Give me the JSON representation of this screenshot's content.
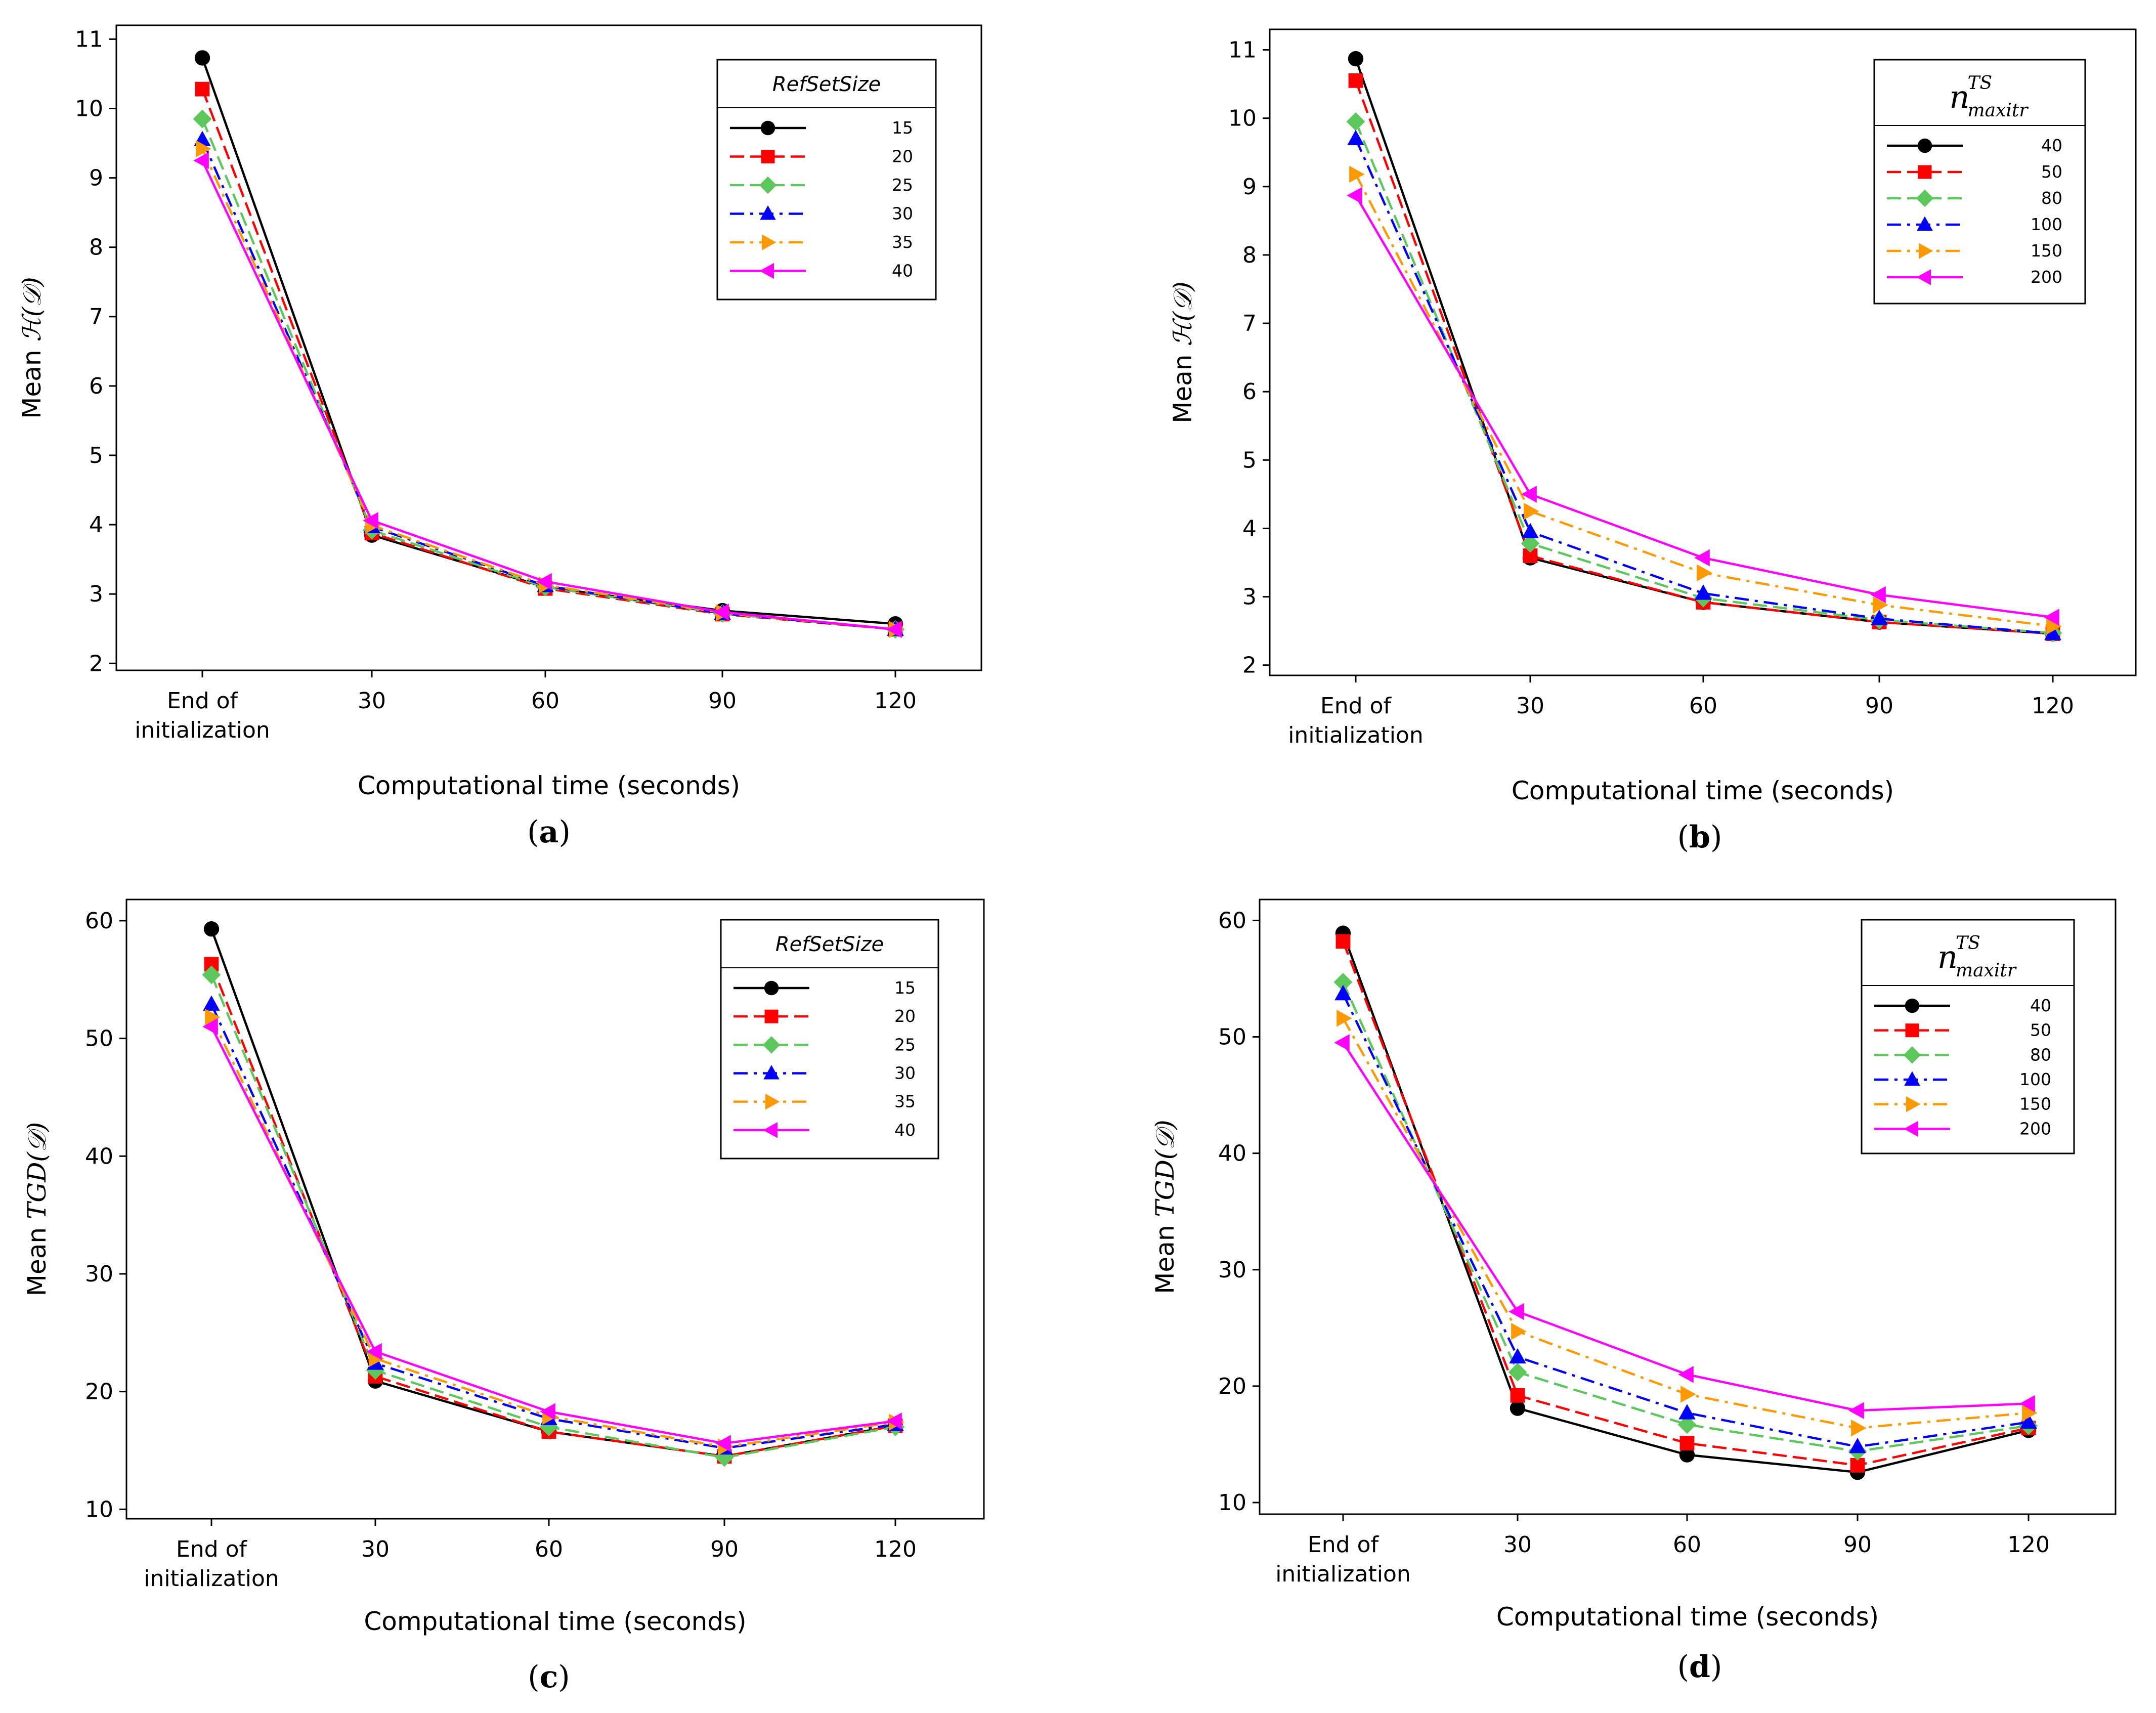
{
  "chart_data": [
    {
      "panel": "a",
      "type": "line",
      "caption": {
        "open": "(",
        "letter": "a",
        "close": ")"
      },
      "categories": [
        "End of\ninitialization",
        "30",
        "60",
        "90",
        "120"
      ],
      "xlabel": "Computational time (seconds)",
      "ylabel": {
        "prefix": "Mean ",
        "math": "ℋ(𝒟)"
      },
      "yticks": [
        "2",
        "3",
        "4",
        "5",
        "6",
        "7",
        "8",
        "9",
        "10",
        "11"
      ],
      "ylim": [
        1.9,
        11.2
      ],
      "legend": {
        "title": "RefSetSize",
        "title_kind": "text",
        "position": "top-right"
      },
      "series": [
        {
          "name": "15",
          "color": "#000000",
          "marker": "circle",
          "dash": "solid",
          "values": [
            10.73,
            3.85,
            3.1,
            2.76,
            2.57
          ]
        },
        {
          "name": "20",
          "color": "#ff0000",
          "marker": "square",
          "dash": "dash",
          "values": [
            10.28,
            3.88,
            3.08,
            2.71,
            2.49
          ]
        },
        {
          "name": "25",
          "color": "#5cc85c",
          "marker": "diamond",
          "dash": "dash",
          "values": [
            9.85,
            3.92,
            3.1,
            2.72,
            2.49
          ]
        },
        {
          "name": "30",
          "color": "#0000ff",
          "marker": "triangle-up",
          "dash": "dashdot",
          "values": [
            9.55,
            3.97,
            3.12,
            2.72,
            2.49
          ]
        },
        {
          "name": "35",
          "color": "#ff9900",
          "marker": "triangle-right",
          "dash": "dashdot",
          "values": [
            9.42,
            3.99,
            3.13,
            2.73,
            2.49
          ]
        },
        {
          "name": "40",
          "color": "#ff00ff",
          "marker": "triangle-left",
          "dash": "solid",
          "values": [
            9.25,
            4.06,
            3.18,
            2.74,
            2.49
          ]
        }
      ]
    },
    {
      "panel": "b",
      "type": "line",
      "caption": {
        "open": "(",
        "letter": "b",
        "close": ")"
      },
      "categories": [
        "End of\ninitialization",
        "30",
        "60",
        "90",
        "120"
      ],
      "xlabel": "Computational time (seconds)",
      "ylabel": {
        "prefix": "Mean ",
        "math": "ℋ(𝒟)"
      },
      "yticks": [
        "2",
        "3",
        "4",
        "5",
        "6",
        "7",
        "8",
        "9",
        "10",
        "11"
      ],
      "ylim": [
        1.85,
        11.3
      ],
      "legend": {
        "title": "n",
        "title_sup": "TS",
        "title_sub": "maxitr",
        "title_kind": "math",
        "position": "top-right"
      },
      "series": [
        {
          "name": "40",
          "color": "#000000",
          "marker": "circle",
          "dash": "solid",
          "values": [
            10.87,
            3.57,
            2.92,
            2.63,
            2.46
          ]
        },
        {
          "name": "50",
          "color": "#ff0000",
          "marker": "square",
          "dash": "dash",
          "values": [
            10.55,
            3.6,
            2.92,
            2.63,
            2.46
          ]
        },
        {
          "name": "80",
          "color": "#5cc85c",
          "marker": "diamond",
          "dash": "dash",
          "values": [
            9.95,
            3.78,
            2.98,
            2.66,
            2.47
          ]
        },
        {
          "name": "100",
          "color": "#0000ff",
          "marker": "triangle-up",
          "dash": "dashdot",
          "values": [
            9.7,
            3.95,
            3.05,
            2.68,
            2.46
          ]
        },
        {
          "name": "150",
          "color": "#ff9900",
          "marker": "triangle-right",
          "dash": "dashdot",
          "values": [
            9.18,
            4.25,
            3.35,
            2.88,
            2.57
          ]
        },
        {
          "name": "200",
          "color": "#ff00ff",
          "marker": "triangle-left",
          "dash": "solid",
          "values": [
            8.87,
            4.5,
            3.57,
            3.03,
            2.7
          ]
        }
      ]
    },
    {
      "panel": "c",
      "type": "line",
      "caption": {
        "open": "(",
        "letter": "c",
        "close": ")"
      },
      "categories": [
        "End of\ninitialization",
        "30",
        "60",
        "90",
        "120"
      ],
      "xlabel": "Computational time (seconds)",
      "ylabel": {
        "prefix": "Mean ",
        "math": "TGD(𝒟)"
      },
      "yticks": [
        "10",
        "20",
        "30",
        "40",
        "50",
        "60"
      ],
      "ylim": [
        9.2,
        61.8
      ],
      "legend": {
        "title": "RefSetSize",
        "title_kind": "text",
        "position": "top-right"
      },
      "series": [
        {
          "name": "15",
          "color": "#000000",
          "marker": "circle",
          "dash": "solid",
          "values": [
            59.3,
            20.9,
            16.6,
            14.5,
            17.1
          ]
        },
        {
          "name": "20",
          "color": "#ff0000",
          "marker": "square",
          "dash": "dash",
          "values": [
            56.3,
            21.3,
            16.6,
            14.5,
            17.1
          ]
        },
        {
          "name": "25",
          "color": "#5cc85c",
          "marker": "diamond",
          "dash": "dash",
          "values": [
            55.4,
            21.8,
            17.0,
            14.4,
            17.0
          ]
        },
        {
          "name": "30",
          "color": "#0000ff",
          "marker": "triangle-up",
          "dash": "dashdot",
          "values": [
            52.9,
            22.4,
            17.7,
            15.2,
            17.2
          ]
        },
        {
          "name": "35",
          "color": "#ff9900",
          "marker": "triangle-right",
          "dash": "dashdot",
          "values": [
            51.8,
            22.8,
            17.9,
            15.3,
            17.4
          ]
        },
        {
          "name": "40",
          "color": "#ff00ff",
          "marker": "triangle-left",
          "dash": "solid",
          "values": [
            51.0,
            23.4,
            18.3,
            15.6,
            17.5
          ]
        }
      ]
    },
    {
      "panel": "d",
      "type": "line",
      "caption": {
        "open": "(",
        "letter": "d",
        "close": ")"
      },
      "categories": [
        "End of\ninitialization",
        "30",
        "60",
        "90",
        "120"
      ],
      "xlabel": "Computational time (seconds)",
      "ylabel": {
        "prefix": "Mean ",
        "math": "TGD(𝒟)"
      },
      "yticks": [
        "10",
        "20",
        "30",
        "40",
        "50",
        "60"
      ],
      "ylim": [
        9.0,
        61.8
      ],
      "legend": {
        "title": "n",
        "title_sup": "TS",
        "title_sub": "maxitr",
        "title_kind": "math",
        "position": "top-right"
      },
      "series": [
        {
          "name": "40",
          "color": "#000000",
          "marker": "circle",
          "dash": "solid",
          "values": [
            58.9,
            18.1,
            14.1,
            12.6,
            16.2
          ]
        },
        {
          "name": "50",
          "color": "#ff0000",
          "marker": "square",
          "dash": "dash",
          "values": [
            58.2,
            19.2,
            15.1,
            13.2,
            16.4
          ]
        },
        {
          "name": "80",
          "color": "#5cc85c",
          "marker": "diamond",
          "dash": "dash",
          "values": [
            54.7,
            21.2,
            16.7,
            14.4,
            16.6
          ]
        },
        {
          "name": "100",
          "color": "#0000ff",
          "marker": "triangle-up",
          "dash": "dashdot",
          "values": [
            53.7,
            22.5,
            17.7,
            14.8,
            16.9
          ]
        },
        {
          "name": "150",
          "color": "#ff9900",
          "marker": "triangle-right",
          "dash": "dashdot",
          "values": [
            51.6,
            24.7,
            19.3,
            16.4,
            17.7
          ]
        },
        {
          "name": "200",
          "color": "#ff00ff",
          "marker": "triangle-left",
          "dash": "solid",
          "values": [
            49.5,
            26.4,
            21.0,
            17.9,
            18.5
          ]
        }
      ]
    }
  ]
}
